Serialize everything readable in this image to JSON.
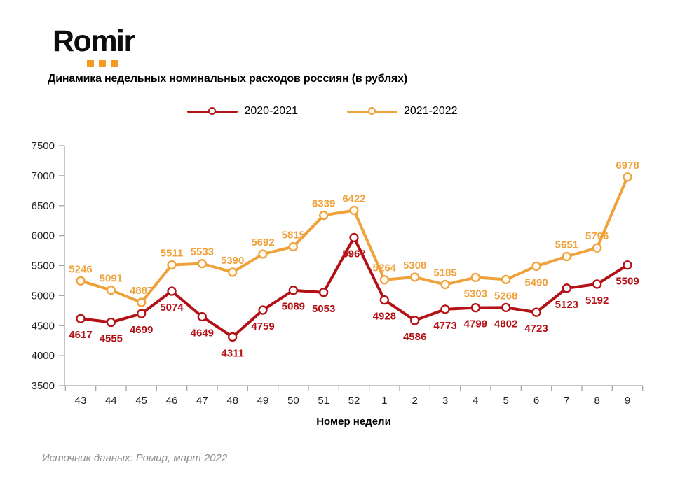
{
  "logo": {
    "text": "Romir",
    "dots_color": "#F49B1F"
  },
  "header": {
    "title": "Динамика недельных номинальных расходов россиян (в рублях)"
  },
  "footer": {
    "source": "Источник данных: Ромир, март 2022"
  },
  "chart_data": {
    "type": "line",
    "title": "Динамика недельных номинальных расходов россиян (в рублях)",
    "xlabel": "Номер недели",
    "ylabel": "",
    "categories": [
      "43",
      "44",
      "45",
      "46",
      "47",
      "48",
      "49",
      "50",
      "51",
      "52",
      "1",
      "2",
      "3",
      "4",
      "5",
      "6",
      "7",
      "8",
      "9"
    ],
    "y_axis": {
      "min": 3500,
      "max": 7500,
      "step": 500
    },
    "grid": false,
    "legend_position": "top",
    "axis_color": "#A6A6A6",
    "series": [
      {
        "name": "2020-2021",
        "color": "#B41116",
        "marker_fill": "#FFFFFF",
        "label_placement": "below",
        "label_below_indices": [],
        "values": [
          4617,
          4555,
          4699,
          5074,
          4649,
          4311,
          4759,
          5089,
          5053,
          5967,
          4928,
          4586,
          4773,
          4799,
          4802,
          4723,
          5123,
          5192,
          5509
        ]
      },
      {
        "name": "2021-2022",
        "color": "#EFA23B",
        "marker_fill": "#FFFBF0",
        "label_placement": "above",
        "label_below_indices": [
          13,
          14,
          15
        ],
        "values": [
          5246,
          5091,
          4887,
          5511,
          5533,
          5390,
          5692,
          5815,
          6339,
          6422,
          5264,
          5308,
          5185,
          5303,
          5268,
          5490,
          5651,
          5796,
          6978
        ]
      }
    ]
  }
}
